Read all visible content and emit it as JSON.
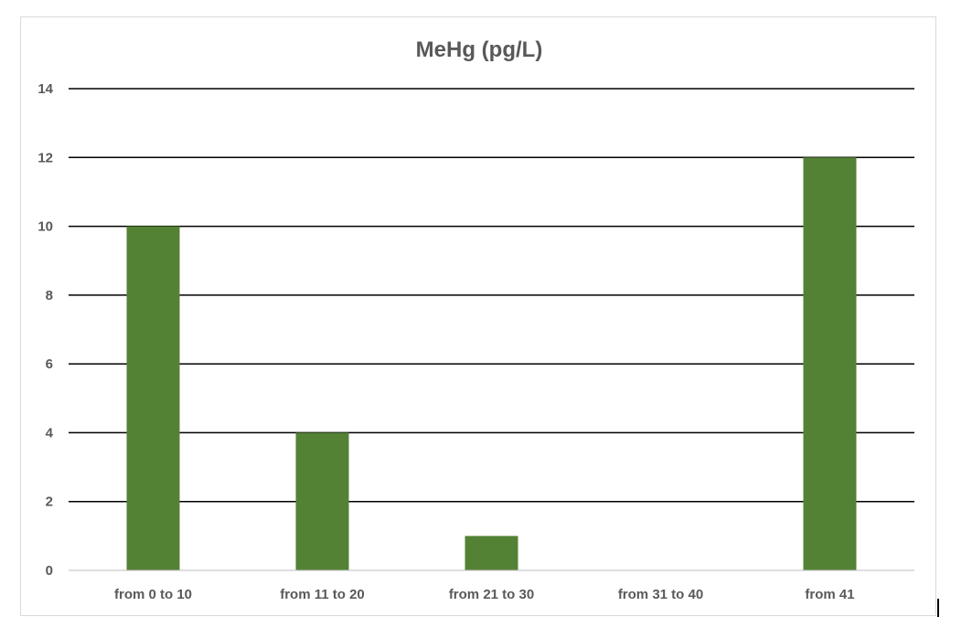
{
  "chart_data": {
    "type": "bar",
    "title": "MeHg (pg/L)",
    "categories": [
      "from 0 to 10",
      "from 11 to 20",
      "from 21 to 30",
      "from 31 to 40",
      "from 41"
    ],
    "series": [
      {
        "values": [
          10,
          4,
          1,
          0,
          12
        ],
        "color": "#548235"
      }
    ],
    "ylim": [
      0,
      14
    ],
    "yticks": [
      0,
      2,
      4,
      6,
      8,
      10,
      12,
      14
    ],
    "ytick_labels": [
      "0",
      "2",
      "4",
      "6",
      "8",
      "10",
      "12",
      "14"
    ],
    "xlabel": "",
    "ylabel": "",
    "grid": true,
    "legend": "none"
  }
}
